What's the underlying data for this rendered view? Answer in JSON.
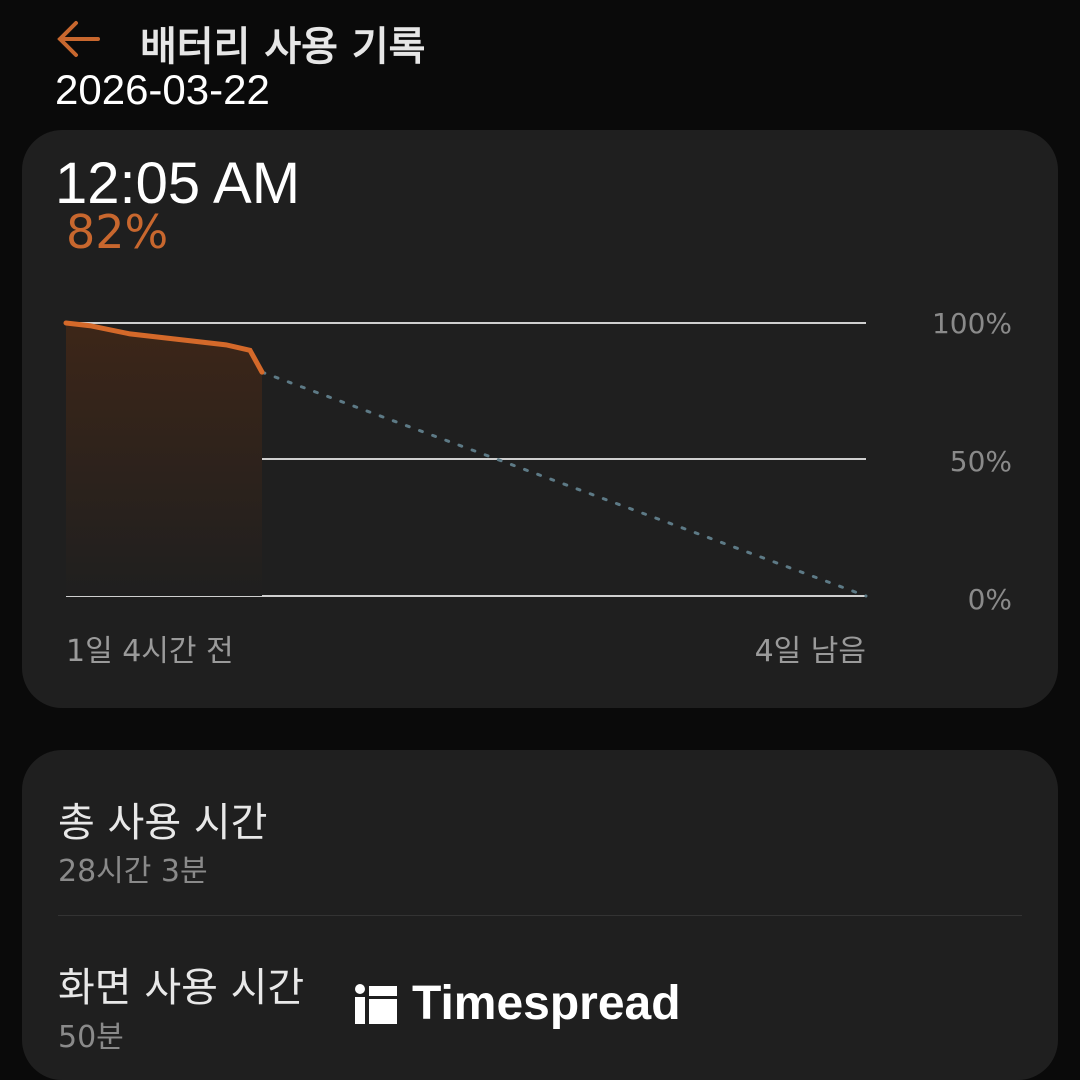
{
  "header": {
    "title": "배터리 사용 기록",
    "back_icon": "arrow-left-icon",
    "accent": "#c8672e"
  },
  "overlay": {
    "date": "2026-03-22",
    "time": "12:05 AM"
  },
  "battery": {
    "current_percent_label": "82%"
  },
  "chart_data": {
    "type": "line",
    "y_ticks": [
      "100%",
      "50%",
      "0%"
    ],
    "ylim": [
      0,
      100
    ],
    "x_labels": {
      "start": "1일 4시간 전",
      "end": "4일 남음"
    },
    "x": [
      0,
      0.03,
      0.08,
      0.14,
      0.2,
      0.23,
      0.245
    ],
    "values": [
      100,
      99,
      96,
      94,
      92,
      90,
      82
    ],
    "projection": {
      "x": [
        0.245,
        1
      ],
      "values": [
        82,
        0
      ]
    },
    "grid": true,
    "colors": {
      "actual": "#d4692a",
      "projection": "#5d7a86",
      "fill": "#3a2a20"
    }
  },
  "usage": {
    "total": {
      "label": "총 사용 시간",
      "value": "28시간 3분"
    },
    "screen": {
      "label": "화면 사용 시간",
      "value": "50분"
    }
  },
  "watermark": {
    "text": "Timespread"
  }
}
